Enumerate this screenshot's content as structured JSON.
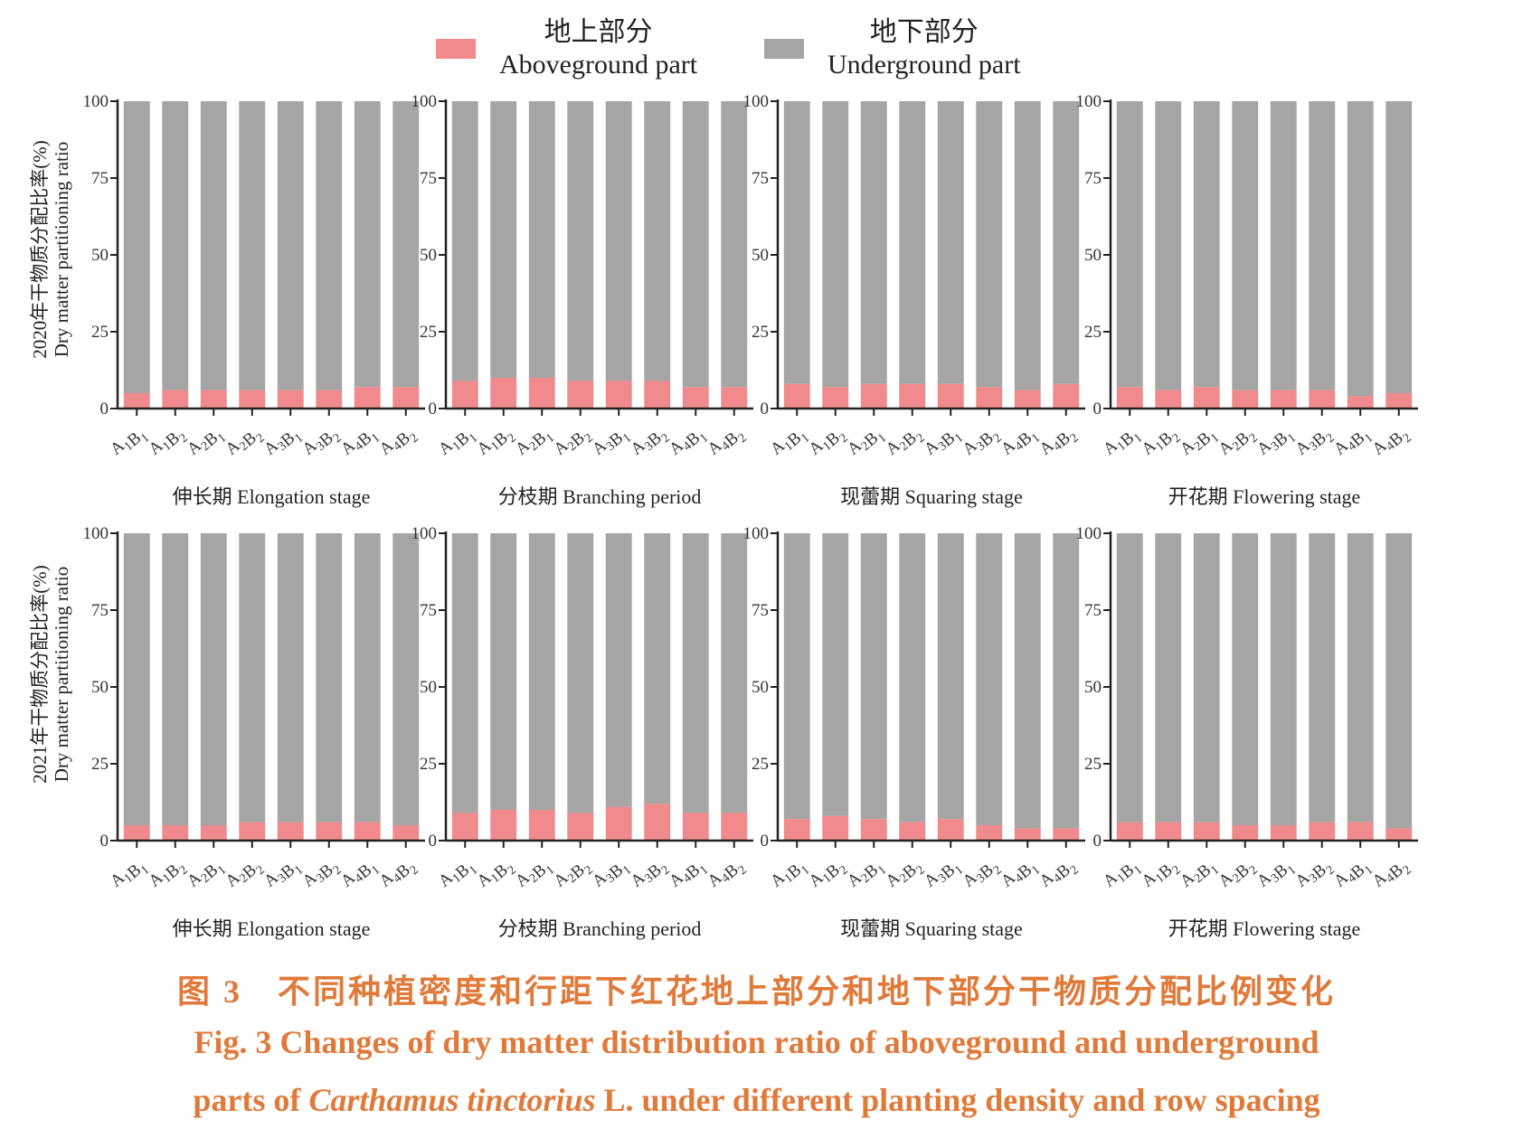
{
  "legend": {
    "aboveground_cn": "地上部分",
    "aboveground_en": "Aboveground part",
    "underground_cn": "地下部分",
    "underground_en": "Underground part",
    "aboveground_color": "#f08a8c",
    "underground_color": "#a5a5a5"
  },
  "y_labels": [
    {
      "cn": "2020年干物质分配比率(%)",
      "en": "Dry matter partitioning ratio"
    },
    {
      "cn": "2021年干物质分配比率(%)",
      "en": "Dry matter partitioning ratio"
    }
  ],
  "caption": {
    "cn": "图 3　不同种植密度和行距下红花地上部分和地下部分干物质分配比例变化",
    "en_line1": "Fig. 3 Changes of dry matter distribution ratio of aboveground and underground",
    "en_line2_before": "parts of ",
    "en_line2_italic": "Carthamus tinctorius",
    "en_line2_after": " L.  under different planting density and row spacing"
  },
  "chart_data": [
    {
      "type": "bar",
      "stacked": true,
      "year": "2020",
      "stage": "伸长期 Elongation stage",
      "categories": [
        "A1B1",
        "A1B2",
        "A2B1",
        "A2B2",
        "A3B1",
        "A3B2",
        "A4B1",
        "A4B2"
      ],
      "ylim": [
        0,
        100
      ],
      "yticks": [
        0,
        25,
        50,
        75,
        100
      ],
      "series": [
        {
          "name": "Aboveground part",
          "values": [
            5,
            6,
            6,
            6,
            6,
            6,
            7,
            7
          ]
        },
        {
          "name": "Underground part",
          "values": [
            95,
            94,
            94,
            94,
            94,
            94,
            93,
            93
          ]
        }
      ]
    },
    {
      "type": "bar",
      "stacked": true,
      "year": "2020",
      "stage": "分枝期 Branching period",
      "categories": [
        "A1B1",
        "A1B2",
        "A2B1",
        "A2B2",
        "A3B1",
        "A3B2",
        "A4B1",
        "A4B2"
      ],
      "ylim": [
        0,
        100
      ],
      "yticks": [
        0,
        25,
        50,
        75,
        100
      ],
      "series": [
        {
          "name": "Aboveground part",
          "values": [
            9,
            10,
            10,
            9,
            9,
            9,
            7,
            7
          ]
        },
        {
          "name": "Underground part",
          "values": [
            91,
            90,
            90,
            91,
            91,
            91,
            93,
            93
          ]
        }
      ]
    },
    {
      "type": "bar",
      "stacked": true,
      "year": "2020",
      "stage": "现蕾期 Squaring stage",
      "categories": [
        "A1B1",
        "A1B2",
        "A2B1",
        "A2B2",
        "A3B1",
        "A3B2",
        "A4B1",
        "A4B2"
      ],
      "ylim": [
        0,
        100
      ],
      "yticks": [
        0,
        25,
        50,
        75,
        100
      ],
      "series": [
        {
          "name": "Aboveground part",
          "values": [
            8,
            7,
            8,
            8,
            8,
            7,
            6,
            8
          ]
        },
        {
          "name": "Underground part",
          "values": [
            92,
            93,
            92,
            92,
            92,
            93,
            94,
            92
          ]
        }
      ]
    },
    {
      "type": "bar",
      "stacked": true,
      "year": "2020",
      "stage": "开花期 Flowering stage",
      "categories": [
        "A1B1",
        "A1B2",
        "A2B1",
        "A2B2",
        "A3B1",
        "A3B2",
        "A4B1",
        "A4B2"
      ],
      "ylim": [
        0,
        100
      ],
      "yticks": [
        0,
        25,
        50,
        75,
        100
      ],
      "series": [
        {
          "name": "Aboveground part",
          "values": [
            7,
            6,
            7,
            6,
            6,
            6,
            4,
            5
          ]
        },
        {
          "name": "Underground part",
          "values": [
            93,
            94,
            93,
            94,
            94,
            94,
            96,
            95
          ]
        }
      ]
    },
    {
      "type": "bar",
      "stacked": true,
      "year": "2021",
      "stage": "伸长期 Elongation stage",
      "categories": [
        "A1B1",
        "A1B2",
        "A2B1",
        "A2B2",
        "A3B1",
        "A3B2",
        "A4B1",
        "A4B2"
      ],
      "ylim": [
        0,
        100
      ],
      "yticks": [
        0,
        25,
        50,
        75,
        100
      ],
      "series": [
        {
          "name": "Aboveground part",
          "values": [
            5,
            5,
            5,
            6,
            6,
            6,
            6,
            5
          ]
        },
        {
          "name": "Underground part",
          "values": [
            95,
            95,
            95,
            94,
            94,
            94,
            94,
            95
          ]
        }
      ]
    },
    {
      "type": "bar",
      "stacked": true,
      "year": "2021",
      "stage": "分枝期 Branching period",
      "categories": [
        "A1B1",
        "A1B2",
        "A2B1",
        "A2B2",
        "A3B1",
        "A3B2",
        "A4B1",
        "A4B2"
      ],
      "ylim": [
        0,
        100
      ],
      "yticks": [
        0,
        25,
        50,
        75,
        100
      ],
      "series": [
        {
          "name": "Aboveground part",
          "values": [
            9,
            10,
            10,
            9,
            11,
            12,
            9,
            9
          ]
        },
        {
          "name": "Underground part",
          "values": [
            91,
            90,
            90,
            91,
            89,
            88,
            91,
            91
          ]
        }
      ]
    },
    {
      "type": "bar",
      "stacked": true,
      "year": "2021",
      "stage": "现蕾期 Squaring stage",
      "categories": [
        "A1B1",
        "A1B2",
        "A2B1",
        "A2B2",
        "A3B1",
        "A3B2",
        "A4B1",
        "A4B2"
      ],
      "ylim": [
        0,
        100
      ],
      "yticks": [
        0,
        25,
        50,
        75,
        100
      ],
      "series": [
        {
          "name": "Aboveground part",
          "values": [
            7,
            8,
            7,
            6,
            7,
            5,
            4,
            4
          ]
        },
        {
          "name": "Underground part",
          "values": [
            93,
            92,
            93,
            94,
            93,
            95,
            96,
            96
          ]
        }
      ]
    },
    {
      "type": "bar",
      "stacked": true,
      "year": "2021",
      "stage": "开花期 Flowering stage",
      "categories": [
        "A1B1",
        "A1B2",
        "A2B1",
        "A2B2",
        "A3B1",
        "A3B2",
        "A4B1",
        "A4B2"
      ],
      "ylim": [
        0,
        100
      ],
      "yticks": [
        0,
        25,
        50,
        75,
        100
      ],
      "series": [
        {
          "name": "Aboveground part",
          "values": [
            6,
            6,
            6,
            5,
            5,
            6,
            6,
            4
          ]
        },
        {
          "name": "Underground part",
          "values": [
            94,
            94,
            94,
            95,
            95,
            94,
            94,
            96
          ]
        }
      ]
    }
  ]
}
